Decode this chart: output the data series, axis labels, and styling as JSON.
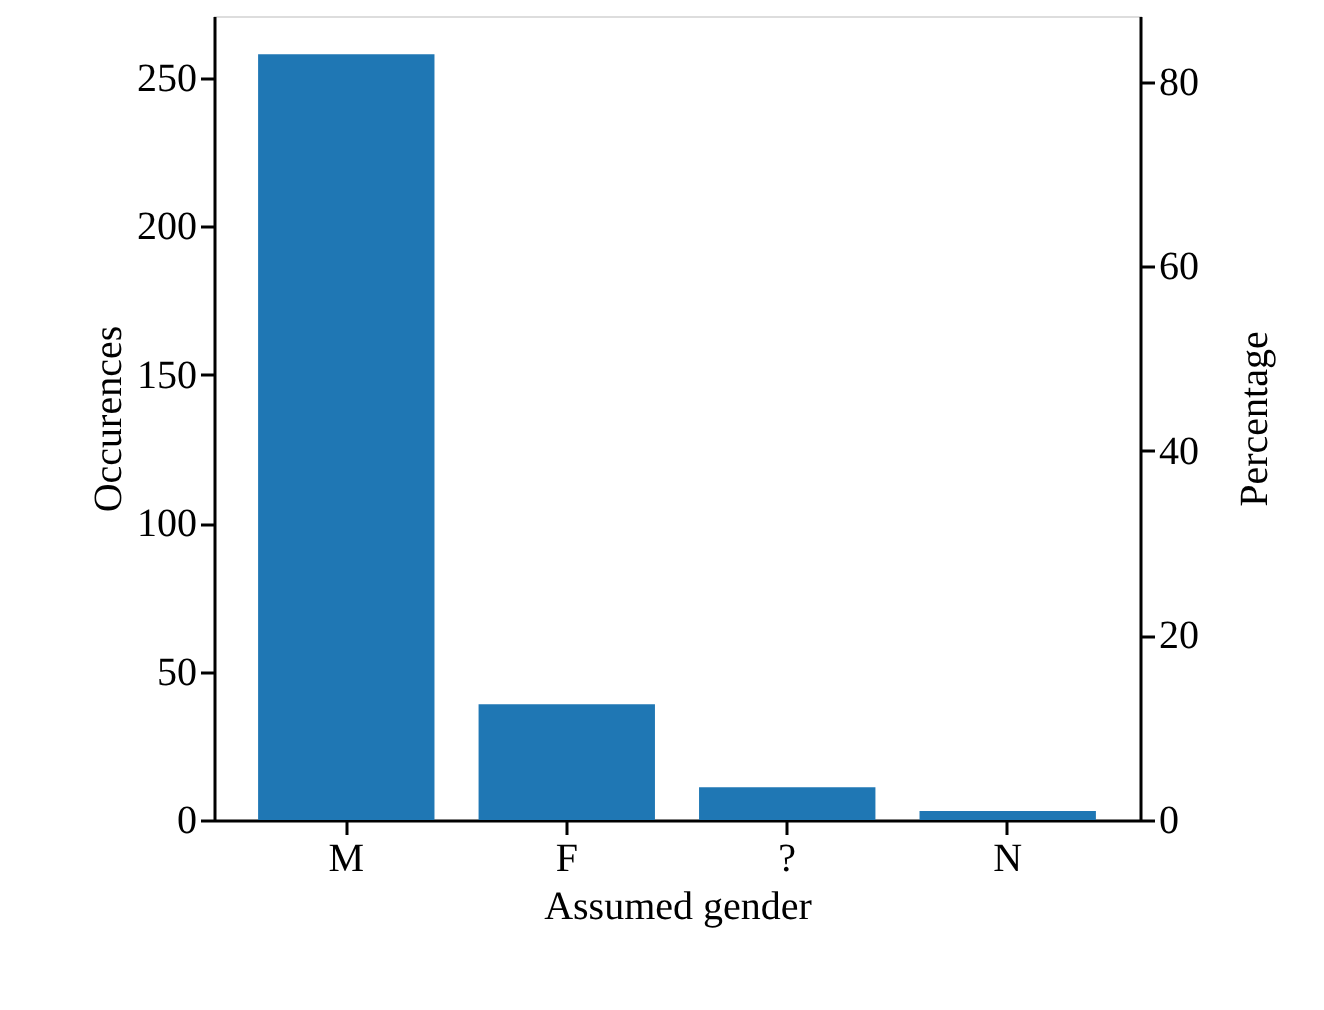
{
  "chart_data": {
    "type": "bar",
    "xlabel": "Assumed gender",
    "ylabel": "Occurences",
    "y2label": "Percentage",
    "categories": [
      "M",
      "F",
      "?",
      "N"
    ],
    "series": [
      {
        "color": "#1f77b4",
        "values": [
          258,
          39,
          11,
          3
        ]
      }
    ],
    "ylim": [
      0,
      270.9
    ],
    "yticks": [
      0,
      50,
      100,
      150,
      200,
      250
    ],
    "y2lim": [
      0,
      87.1
    ],
    "y2ticks": [
      0,
      20,
      40,
      60,
      80
    ],
    "grid": false
  }
}
